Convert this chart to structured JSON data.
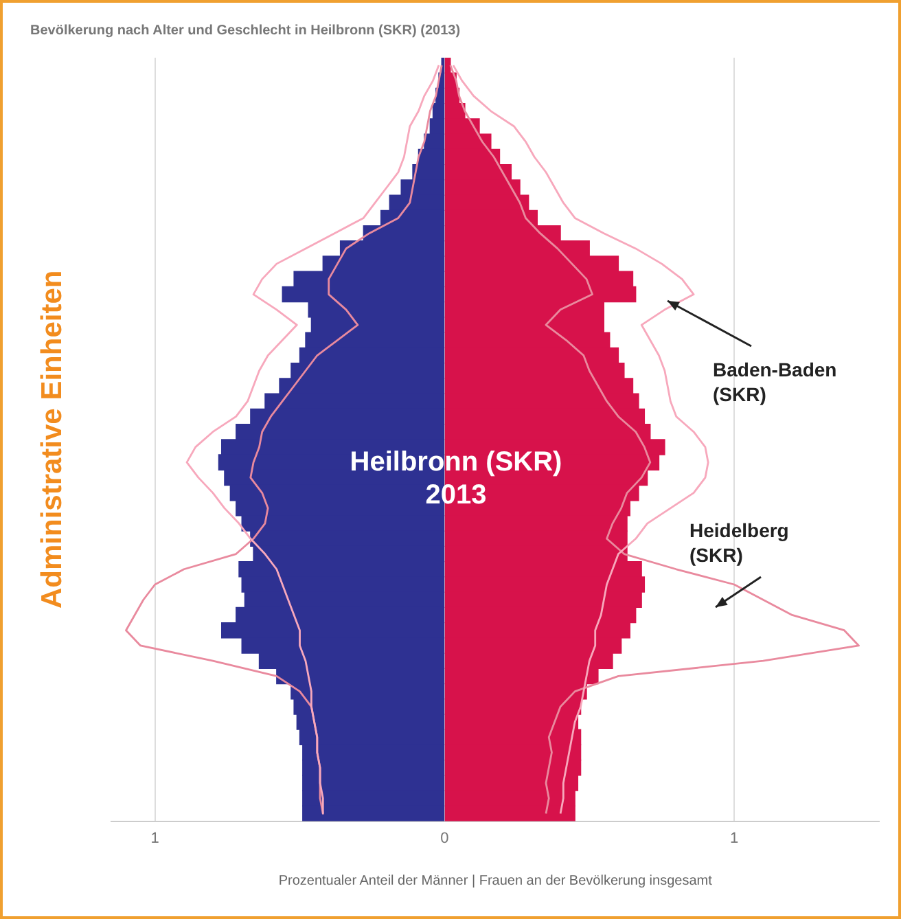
{
  "chart_data": {
    "type": "bar",
    "title": "Bevölkerung nach Alter und Geschlecht in Heilbronn (SKR) (2013)",
    "xlabel": "Prozentualer Anteil der Männer | Frauen an der Bevölkerung insgesamt",
    "ylabel": "Administrative Einheiten",
    "annotations": [
      "Heilbronn (SKR) 2013",
      "Baden-Baden (SKR)",
      "Heidelberg (SKR)"
    ],
    "orientation": "horizontal",
    "stacked": true,
    "grid": "x",
    "marker": "none",
    "line_style": "solid",
    "xlim": [
      -1.15,
      1.5
    ],
    "xticks": [
      {
        "value": -1,
        "label": "1"
      },
      0,
      1
    ],
    "categories": [
      null,
      null,
      null,
      null,
      null,
      null,
      null,
      null,
      null,
      null,
      null,
      null,
      null,
      null,
      null,
      null,
      null,
      null,
      null,
      null,
      null,
      null,
      null,
      null,
      null,
      null,
      null,
      null,
      null,
      null,
      null,
      null,
      null,
      null,
      null,
      null,
      null,
      null,
      null,
      null,
      null,
      null,
      null,
      null,
      null,
      null,
      null,
      null,
      null,
      null
    ],
    "series": [
      {
        "color": "#2e3192",
        "values": [
          -0.01,
          -0.02,
          -0.03,
          -0.04,
          -0.05,
          -0.07,
          -0.09,
          -0.11,
          -0.15,
          -0.19,
          -0.22,
          -0.28,
          -0.36,
          -0.42,
          -0.52,
          -0.56,
          -0.47,
          -0.46,
          -0.48,
          -0.5,
          -0.53,
          -0.57,
          -0.62,
          -0.67,
          -0.72,
          -0.77,
          -0.78,
          -0.76,
          -0.74,
          -0.72,
          -0.7,
          -0.67,
          -0.66,
          -0.71,
          -0.7,
          -0.69,
          -0.72,
          -0.77,
          -0.7,
          -0.64,
          -0.58,
          -0.53,
          -0.52,
          -0.51,
          -0.5,
          -0.49,
          -0.49,
          -0.49,
          -0.49,
          -0.49
        ]
      },
      {
        "color": "#d7124b",
        "values": [
          0.02,
          0.04,
          0.05,
          0.07,
          0.12,
          0.16,
          0.19,
          0.23,
          0.26,
          0.29,
          0.32,
          0.4,
          0.5,
          0.6,
          0.65,
          0.66,
          0.55,
          0.55,
          0.57,
          0.6,
          0.62,
          0.65,
          0.67,
          0.69,
          0.71,
          0.76,
          0.74,
          0.7,
          0.67,
          0.64,
          0.63,
          0.63,
          0.63,
          0.68,
          0.69,
          0.68,
          0.66,
          0.64,
          0.61,
          0.58,
          0.53,
          0.49,
          0.47,
          0.46,
          0.47,
          0.47,
          0.47,
          0.46,
          0.45,
          0.45
        ]
      },
      {
        "type": "line",
        "color": "#f7a8bc",
        "values": [
          -0.02,
          -0.04,
          -0.07,
          -0.09,
          -0.12,
          -0.13,
          -0.14,
          -0.16,
          -0.2,
          -0.24,
          -0.28,
          -0.38,
          -0.48,
          -0.58,
          -0.63,
          -0.66,
          -0.58,
          -0.51,
          -0.56,
          -0.61,
          -0.64,
          -0.66,
          -0.68,
          -0.72,
          -0.8,
          -0.86,
          -0.89,
          -0.85,
          -0.8,
          -0.76,
          -0.71,
          -0.67,
          -0.62,
          -0.58,
          -0.56,
          -0.54,
          -0.52,
          -0.5,
          -0.5,
          -0.48,
          -0.47,
          -0.46,
          -0.46,
          -0.45,
          -0.44,
          -0.44,
          -0.43,
          -0.43,
          -0.42,
          -0.42
        ]
      },
      {
        "type": "line",
        "color": "#f7a8bc",
        "values": [
          0.03,
          0.06,
          0.1,
          0.16,
          0.24,
          0.28,
          0.31,
          0.35,
          0.38,
          0.41,
          0.45,
          0.55,
          0.66,
          0.75,
          0.82,
          0.86,
          0.76,
          0.68,
          0.71,
          0.74,
          0.76,
          0.77,
          0.78,
          0.8,
          0.86,
          0.9,
          0.91,
          0.9,
          0.86,
          0.78,
          0.7,
          0.66,
          0.6,
          0.58,
          0.56,
          0.55,
          0.54,
          0.52,
          0.52,
          0.5,
          0.49,
          0.48,
          0.47,
          0.45,
          0.44,
          0.43,
          0.42,
          0.41,
          0.41,
          0.4
        ]
      },
      {
        "type": "line",
        "color": "#e98a9e",
        "values": [
          -0.01,
          -0.02,
          -0.03,
          -0.05,
          -0.06,
          -0.07,
          -0.09,
          -0.1,
          -0.11,
          -0.12,
          -0.16,
          -0.26,
          -0.34,
          -0.37,
          -0.4,
          -0.4,
          -0.34,
          -0.3,
          -0.37,
          -0.44,
          -0.48,
          -0.52,
          -0.56,
          -0.6,
          -0.63,
          -0.64,
          -0.66,
          -0.67,
          -0.63,
          -0.61,
          -0.62,
          -0.66,
          -0.72,
          -0.9,
          -1.0,
          -1.04,
          -1.07,
          -1.1,
          -1.05,
          -0.8,
          -0.58,
          -0.5,
          -0.46,
          -0.45,
          -0.44,
          -0.44,
          -0.43,
          -0.43,
          -0.43,
          -0.42
        ]
      },
      {
        "type": "line",
        "color": "#e98a9e",
        "values": [
          0.02,
          0.04,
          0.05,
          0.07,
          0.1,
          0.13,
          0.17,
          0.2,
          0.23,
          0.26,
          0.28,
          0.33,
          0.39,
          0.44,
          0.49,
          0.51,
          0.4,
          0.35,
          0.42,
          0.48,
          0.5,
          0.53,
          0.56,
          0.6,
          0.66,
          0.69,
          0.71,
          0.68,
          0.63,
          0.61,
          0.58,
          0.56,
          0.62,
          0.8,
          1.0,
          1.1,
          1.2,
          1.38,
          1.43,
          1.1,
          0.6,
          0.45,
          0.4,
          0.38,
          0.36,
          0.37,
          0.36,
          0.35,
          0.36,
          0.35
        ]
      }
    ]
  }
}
